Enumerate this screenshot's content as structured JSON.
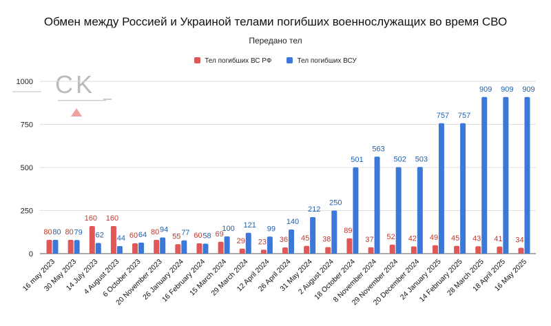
{
  "chart_data": {
    "type": "bar",
    "title": "Обмен между Россией и Украиной телами погибших военнослужащих во время СВО",
    "subtitle": "Передано тел",
    "legend_position": "top",
    "grid": true,
    "ylim": [
      0,
      1000
    ],
    "yticks": [
      0,
      250,
      500,
      750,
      1000
    ],
    "categories": [
      "16 may 2023",
      "30 May 2023",
      "14 July 2023",
      "4 August 2023",
      "6 October 2023",
      "20 November 2023",
      "26 January 2024",
      "16 February 2024",
      "15 March 2024",
      "29 March 2024",
      "12 April 2024",
      "26 April 2024",
      "31 May 2024",
      "2 August 2024",
      "18 October 2024",
      "8 November 2024",
      "29 November 2024",
      "20 December 2024",
      "24 January 2025",
      "14 February 2025",
      "28 March 2025",
      "18 April 2025",
      "16 May 2025"
    ],
    "series": [
      {
        "name": "Тел погибших ВС РФ",
        "color": "#e05757",
        "label_color": "#c0392b",
        "values": [
          80,
          80,
          160,
          160,
          60,
          80,
          55,
          60,
          69,
          29,
          23,
          36,
          45,
          38,
          89,
          37,
          52,
          42,
          49,
          45,
          43,
          41,
          34
        ]
      },
      {
        "name": "Тел погибших ВСУ",
        "color": "#3c78d8",
        "label_color": "#1f5fb0",
        "values": [
          80,
          79,
          62,
          44,
          64,
          94,
          77,
          58,
          100,
          121,
          99,
          140,
          212,
          250,
          501,
          563,
          502,
          503,
          757,
          757,
          909,
          909,
          909
        ]
      }
    ]
  },
  "logo": {
    "text": "CK"
  }
}
